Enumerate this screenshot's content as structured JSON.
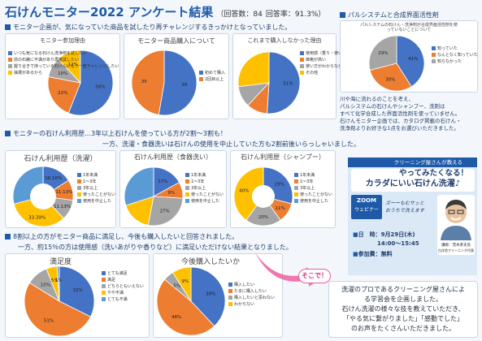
{
  "header": {
    "title": "石けんモニター2022 アンケート結果",
    "respondents": "（回答数：84",
    "rate": "回答率：91.3%）"
  },
  "sections": {
    "s1": "モニター企画が、気になっていた商品を試したり再チャレンジするきっかけとなっていました。",
    "s2a": "モニターの石けん利用歴…3年以上石けんを使っている方が2割〜3割も！",
    "s2b": "一方、洗濯・食器洗いは石けんの使用を中止していた方も2割前後いらっしゃいました。",
    "s3a": "8割以上の方がモニター商品に満足し、今後も購入したいと回答されました。",
    "s3b": "一方、約15％の方は使用感（洗いあがりや香りなど）に満足いただけない結果となりました。",
    "s4": "パルシステムと合成界面活性剤"
  },
  "colors": {
    "c1": "#4472c4",
    "c2": "#ed7d31",
    "c3": "#a5a5a5",
    "c4": "#ffc000",
    "c5": "#5b9bd5",
    "c6": "#264478"
  },
  "chart_data": [
    {
      "id": "participation",
      "type": "pie",
      "title": "モニター参加理由",
      "legend": [
        "いつも気になる石けん洗浄剤を試したい",
        "前の石鹸に不満があり再度試したい",
        "握り合きで持っている石けんにもう一度チャレンジしたい",
        "抽選があるから"
      ],
      "values": [
        56,
        22,
        10,
        12
      ],
      "labels": [
        "56%",
        "22%",
        "10%",
        "12%"
      ]
    },
    {
      "id": "purchase",
      "type": "pie",
      "title": "モニター商品購入について",
      "legend": [
        "初めて購入",
        "2回目以上"
      ],
      "values": [
        39,
        35
      ],
      "labels": [
        "39",
        "35"
      ]
    },
    {
      "id": "notbought",
      "type": "pie",
      "title": "これまで購入しなかった理由",
      "legend": [
        "使用感（香り・使い心地など）がわからず購入に踏み切れなかった",
        "価格が高い",
        "使い方がわからなかった",
        "その他"
      ],
      "values": [
        51,
        11,
        11,
        27
      ],
      "labels": [
        "51%",
        "",
        "",
        ""
      ]
    },
    {
      "id": "wash",
      "type": "pie",
      "title": "石けん利用歴（洗濯）",
      "legend": [
        "1年未満",
        "1〜3年",
        "3年以上",
        "使ったことがない",
        "使用を中止した"
      ],
      "values": [
        16,
        11,
        11,
        33,
        29
      ],
      "labels": [
        "16.16%",
        "11.13%",
        "11.13%",
        "33.39%",
        ""
      ]
    },
    {
      "id": "dish",
      "type": "pie",
      "title": "石けん利用歴（食器洗い）",
      "legend": [
        "1年未満",
        "1〜3年",
        "3年以上",
        "使ったことがない",
        "使用を中止した"
      ],
      "values": [
        17,
        9,
        27,
        17,
        30
      ],
      "labels": [
        "17%",
        "9%",
        "27%",
        "",
        ""
      ]
    },
    {
      "id": "shampoo",
      "type": "pie",
      "title": "石けん利用歴（シャンプー）",
      "legend": [
        "1年未満",
        "1〜3年",
        "3年以上",
        "使ったことがない",
        "使用を中止した"
      ],
      "values": [
        29,
        11,
        20,
        40,
        0
      ],
      "labels": [
        "29%",
        "11%",
        "20%",
        "40%",
        ""
      ]
    },
    {
      "id": "satisfaction",
      "type": "pie",
      "title": "満足度",
      "legend": [
        "とても満足",
        "満足",
        "どちらともいえない",
        "やや不満",
        "とても不満"
      ],
      "values": [
        32,
        51,
        10,
        5,
        1
      ],
      "labels": [
        "32%",
        "51%",
        "10%",
        "5%",
        "1%"
      ]
    },
    {
      "id": "future",
      "type": "pie",
      "title": "今後購入したいか",
      "legend": [
        "購入したい",
        "たまに購入したい",
        "購入したいと思わない",
        "わからない"
      ],
      "values": [
        38,
        48,
        5,
        9
      ],
      "labels": [
        "38%",
        "48%",
        "5%",
        "9%"
      ]
    }
  ],
  "palsystem_chart": {
    "title": "パルシステムの石けん・洗浄剤が合成界面活性剤を使っていないことについて",
    "legend": [
      "知っていた",
      "なんとなく知っていた",
      "知らなかった"
    ],
    "values": [
      41,
      30,
      29
    ],
    "labels": [
      "41%",
      "30%",
      "29%"
    ]
  },
  "side_text": [
    "川や海に流れるのことを考え、",
    "パルシステムの石けんやシャンプー、洗剤は",
    "すべて化学合成した界面活性剤を使っていません。",
    "石けんモニター企画では、カタログ掲載の石けん・",
    "洗浄剤よりお好きな1点をお選びいただきました。"
  ],
  "promo": {
    "host": "クリーニング屋さんが教える",
    "headline1": "やってみたくなる！",
    "headline2": "カラダにいい石けん洗濯♪",
    "zoom1": "ZOOM",
    "zoom2": "ウェビナー",
    "suds1": "ズーーもむサッと",
    "suds2": "おうちで洗えます",
    "date_label": "日　時：",
    "date_value": "9月29日(木)",
    "time_value": "14:00～15:45",
    "fee_label": "参加費：",
    "fee_value": "無料",
    "lecturer1": "講師：茂木孝夫氏",
    "lecturer2": "白洋舎クリーニング代表"
  },
  "callout": "そこで！",
  "bubble": [
    "洗濯のプロであるクリーニング屋さんによ",
    "る学習会を企画しました。",
    "石けん洗濯の様々な技を教えていただき、",
    "「やる気に繋がりました」「感動でした」",
    "のお声をたくさんいただきました。"
  ]
}
